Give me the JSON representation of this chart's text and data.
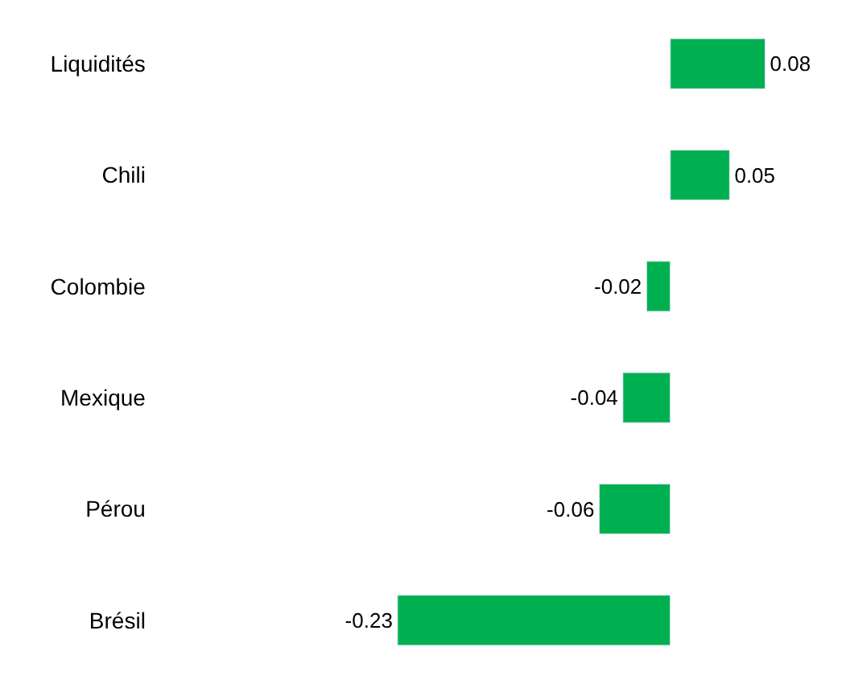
{
  "chart_data": {
    "type": "bar",
    "orientation": "horizontal",
    "categories": [
      "Liquidités",
      "Chili",
      "Colombie",
      "Mexique",
      "Pérou",
      "Brésil"
    ],
    "values": [
      0.08,
      0.05,
      -0.02,
      -0.04,
      -0.06,
      -0.23
    ],
    "color": "#00b050",
    "data_labels": true,
    "tick_labels": "y",
    "legend": false
  }
}
